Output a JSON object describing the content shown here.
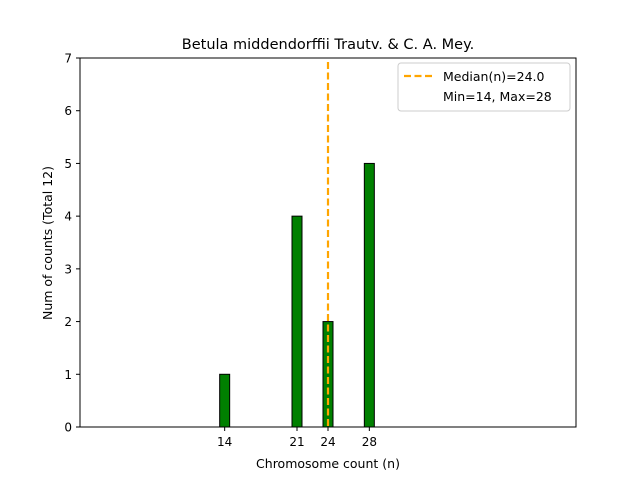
{
  "chart_data": {
    "type": "bar",
    "title": "Betula middendorffii Trautv. & C. A. Mey.",
    "xlabel": "Chromosome count (n)",
    "ylabel": "Num of counts      (Total 12)",
    "x": [
      14,
      21,
      24,
      28
    ],
    "values": [
      1,
      4,
      2,
      5
    ],
    "xlim": [
      0,
      48
    ],
    "ylim": [
      0,
      7
    ],
    "x_ticks": [
      14,
      21,
      24,
      28
    ],
    "y_ticks": [
      0,
      1,
      2,
      3,
      4,
      5,
      6,
      7
    ],
    "bar_color": "#008000",
    "bar_edge_color": "#000000",
    "median": 24.0,
    "median_color": "#FFA500",
    "grid": false,
    "legend_position": "top-right",
    "legend": {
      "median_label": "Median(n)=24.0",
      "range_label": "Min=14, Max=28"
    }
  }
}
